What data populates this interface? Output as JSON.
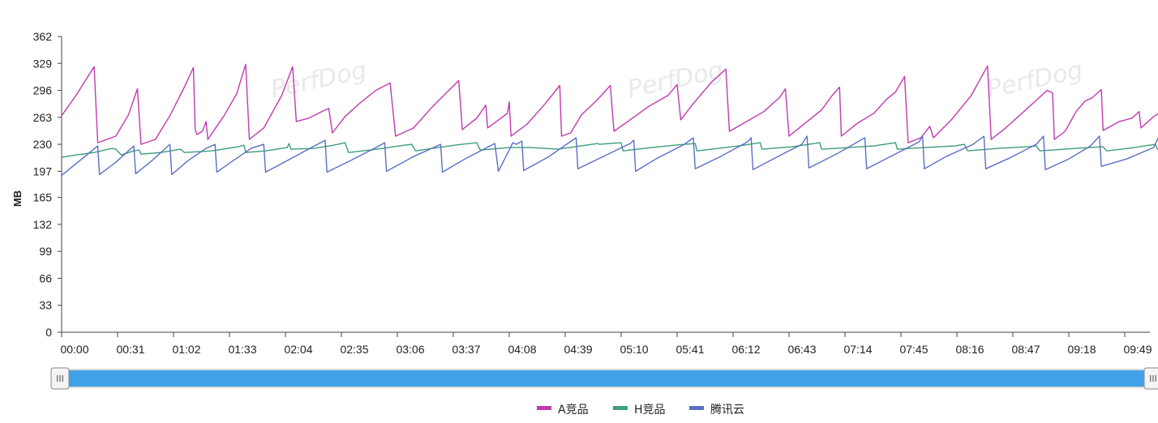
{
  "chart_data": {
    "type": "line",
    "ylabel": "MB",
    "xlabel": "",
    "ylim": [
      0,
      362
    ],
    "y_ticks": [
      "0",
      "33",
      "66",
      "99",
      "132",
      "165",
      "197",
      "230",
      "263",
      "296",
      "329",
      "362"
    ],
    "x_ticks": [
      "00:00",
      "00:31",
      "01:02",
      "01:33",
      "02:04",
      "02:35",
      "03:06",
      "03:37",
      "04:08",
      "04:39",
      "05:10",
      "05:41",
      "06:12",
      "06:43",
      "07:14",
      "07:45",
      "08:16",
      "08:47",
      "09:18",
      "09:49"
    ],
    "x_range_seconds": [
      0,
      609
    ],
    "grid": false,
    "legend_position": "bottom",
    "watermark": "PerfDog",
    "series": [
      {
        "name": "A竞品",
        "color": "#c13ab0",
        "points": [
          [
            0,
            265
          ],
          [
            8,
            290
          ],
          [
            18,
            325
          ],
          [
            20,
            232
          ],
          [
            30,
            240
          ],
          [
            37,
            266
          ],
          [
            42,
            298
          ],
          [
            44,
            230
          ],
          [
            52,
            236
          ],
          [
            60,
            265
          ],
          [
            68,
            300
          ],
          [
            73,
            324
          ],
          [
            74,
            248
          ],
          [
            75,
            242
          ],
          [
            78,
            246
          ],
          [
            80,
            258
          ],
          [
            81,
            236
          ],
          [
            90,
            265
          ],
          [
            97,
            292
          ],
          [
            102,
            328
          ],
          [
            104,
            236
          ],
          [
            112,
            250
          ],
          [
            122,
            290
          ],
          [
            128,
            325
          ],
          [
            130,
            258
          ],
          [
            137,
            262
          ],
          [
            145,
            271
          ],
          [
            148,
            274
          ],
          [
            150,
            244
          ],
          [
            157,
            264
          ],
          [
            165,
            280
          ],
          [
            174,
            296
          ],
          [
            182,
            305
          ],
          [
            185,
            240
          ],
          [
            195,
            250
          ],
          [
            205,
            275
          ],
          [
            215,
            297
          ],
          [
            220,
            308
          ],
          [
            222,
            248
          ],
          [
            230,
            262
          ],
          [
            235,
            278
          ],
          [
            236,
            250
          ],
          [
            247,
            268
          ],
          [
            248,
            282
          ],
          [
            249,
            240
          ],
          [
            258,
            255
          ],
          [
            268,
            280
          ],
          [
            276,
            302
          ],
          [
            277,
            240
          ],
          [
            282,
            244
          ],
          [
            288,
            266
          ],
          [
            297,
            285
          ],
          [
            304,
            302
          ],
          [
            306,
            246
          ],
          [
            315,
            260
          ],
          [
            325,
            276
          ],
          [
            336,
            290
          ],
          [
            341,
            303
          ],
          [
            343,
            260
          ],
          [
            350,
            280
          ],
          [
            360,
            306
          ],
          [
            368,
            322
          ],
          [
            370,
            246
          ],
          [
            378,
            256
          ],
          [
            389,
            270
          ],
          [
            398,
            288
          ],
          [
            401,
            298
          ],
          [
            403,
            240
          ],
          [
            412,
            256
          ],
          [
            421,
            272
          ],
          [
            427,
            290
          ],
          [
            431,
            300
          ],
          [
            432,
            240
          ],
          [
            441,
            256
          ],
          [
            450,
            268
          ],
          [
            457,
            285
          ],
          [
            462,
            294
          ],
          [
            467,
            313
          ],
          [
            469,
            232
          ],
          [
            476,
            238
          ],
          [
            481,
            252
          ],
          [
            483,
            238
          ],
          [
            493,
            260
          ],
          [
            504,
            290
          ],
          [
            513,
            326
          ],
          [
            515,
            236
          ],
          [
            523,
            250
          ],
          [
            533,
            270
          ],
          [
            541,
            286
          ],
          [
            546,
            296
          ],
          [
            549,
            293
          ],
          [
            550,
            236
          ],
          [
            556,
            246
          ],
          [
            562,
            270
          ],
          [
            567,
            283
          ],
          [
            571,
            287
          ],
          [
            576,
            297
          ],
          [
            577,
            247
          ],
          [
            586,
            258
          ],
          [
            593,
            262
          ],
          [
            597,
            270
          ],
          [
            598,
            250
          ],
          [
            605,
            264
          ],
          [
            618,
            282
          ],
          [
            627,
            303
          ],
          [
            630,
            320
          ]
        ]
      },
      {
        "name": "H竞品",
        "color": "#3c9e7a",
        "points": [
          [
            0,
            214
          ],
          [
            8,
            217
          ],
          [
            18,
            220
          ],
          [
            28,
            225
          ],
          [
            30,
            224
          ],
          [
            33,
            217
          ],
          [
            40,
            222
          ],
          [
            43,
            223
          ],
          [
            44,
            218
          ],
          [
            55,
            220
          ],
          [
            66,
            224
          ],
          [
            67,
            222
          ],
          [
            68,
            220
          ],
          [
            83,
            222
          ],
          [
            98,
            227
          ],
          [
            101,
            229
          ],
          [
            102,
            220
          ],
          [
            113,
            222
          ],
          [
            125,
            226
          ],
          [
            126,
            231
          ],
          [
            127,
            224
          ],
          [
            140,
            225
          ],
          [
            151,
            229
          ],
          [
            157,
            232
          ],
          [
            159,
            220
          ],
          [
            175,
            224
          ],
          [
            190,
            229
          ],
          [
            194,
            230
          ],
          [
            196,
            222
          ],
          [
            218,
            229
          ],
          [
            230,
            232
          ],
          [
            232,
            223
          ],
          [
            248,
            226
          ],
          [
            260,
            226
          ],
          [
            275,
            224
          ],
          [
            297,
            231
          ],
          [
            298,
            230
          ],
          [
            310,
            232
          ],
          [
            311,
            222
          ],
          [
            327,
            226
          ],
          [
            340,
            229
          ],
          [
            351,
            231
          ],
          [
            352,
            222
          ],
          [
            375,
            228
          ],
          [
            387,
            232
          ],
          [
            388,
            224
          ],
          [
            405,
            227
          ],
          [
            420,
            232
          ],
          [
            421,
            224
          ],
          [
            436,
            226
          ],
          [
            450,
            228
          ],
          [
            462,
            232
          ],
          [
            463,
            224
          ],
          [
            478,
            226
          ],
          [
            495,
            228
          ],
          [
            500,
            230
          ],
          [
            502,
            222
          ],
          [
            519,
            225
          ],
          [
            535,
            227
          ],
          [
            540,
            228
          ],
          [
            542,
            222
          ],
          [
            562,
            225
          ],
          [
            577,
            227
          ],
          [
            579,
            222
          ],
          [
            591,
            225
          ],
          [
            606,
            230
          ],
          [
            607,
            224
          ],
          [
            625,
            228
          ],
          [
            630,
            230
          ],
          [
            639,
            228
          ]
        ]
      },
      {
        "name": "腾讯云",
        "color": "#5a6fc8",
        "points": [
          [
            0,
            192
          ],
          [
            10,
            210
          ],
          [
            20,
            228
          ],
          [
            21,
            193
          ],
          [
            30,
            208
          ],
          [
            40,
            228
          ],
          [
            41,
            194
          ],
          [
            50,
            210
          ],
          [
            60,
            230
          ],
          [
            61,
            193
          ],
          [
            70,
            210
          ],
          [
            80,
            225
          ],
          [
            85,
            230
          ],
          [
            86,
            196
          ],
          [
            95,
            210
          ],
          [
            105,
            225
          ],
          [
            112,
            230
          ],
          [
            113,
            196
          ],
          [
            125,
            210
          ],
          [
            140,
            228
          ],
          [
            146,
            235
          ],
          [
            147,
            196
          ],
          [
            160,
            210
          ],
          [
            175,
            227
          ],
          [
            179,
            232
          ],
          [
            180,
            197
          ],
          [
            195,
            215
          ],
          [
            210,
            230
          ],
          [
            211,
            196
          ],
          [
            225,
            214
          ],
          [
            240,
            231
          ],
          [
            242,
            197
          ],
          [
            250,
            232
          ],
          [
            252,
            230
          ],
          [
            255,
            234
          ],
          [
            256,
            198
          ],
          [
            270,
            215
          ],
          [
            285,
            238
          ],
          [
            286,
            200
          ],
          [
            300,
            215
          ],
          [
            315,
            231
          ],
          [
            317,
            235
          ],
          [
            318,
            197
          ],
          [
            330,
            213
          ],
          [
            345,
            230
          ],
          [
            350,
            238
          ],
          [
            351,
            200
          ],
          [
            365,
            215
          ],
          [
            380,
            233
          ],
          [
            382,
            238
          ],
          [
            383,
            199
          ],
          [
            395,
            213
          ],
          [
            410,
            230
          ],
          [
            413,
            240
          ],
          [
            414,
            201
          ],
          [
            430,
            219
          ],
          [
            445,
            238
          ],
          [
            446,
            200
          ],
          [
            460,
            216
          ],
          [
            475,
            233
          ],
          [
            477,
            240
          ],
          [
            478,
            200
          ],
          [
            490,
            215
          ],
          [
            505,
            230
          ],
          [
            511,
            240
          ],
          [
            512,
            200
          ],
          [
            525,
            213
          ],
          [
            540,
            230
          ],
          [
            544,
            240
          ],
          [
            545,
            199
          ],
          [
            558,
            212
          ],
          [
            570,
            228
          ],
          [
            575,
            240
          ],
          [
            576,
            203
          ],
          [
            590,
            212
          ],
          [
            605,
            226
          ],
          [
            608,
            240
          ],
          [
            609,
            206
          ],
          [
            620,
            213
          ],
          [
            630,
            228
          ],
          [
            635,
            240
          ],
          [
            637,
            200
          ],
          [
            645,
            207
          ],
          [
            652,
            216
          ]
        ]
      }
    ]
  },
  "slider": {
    "handle_grip": "III",
    "start_fraction": 0,
    "end_fraction": 1
  }
}
